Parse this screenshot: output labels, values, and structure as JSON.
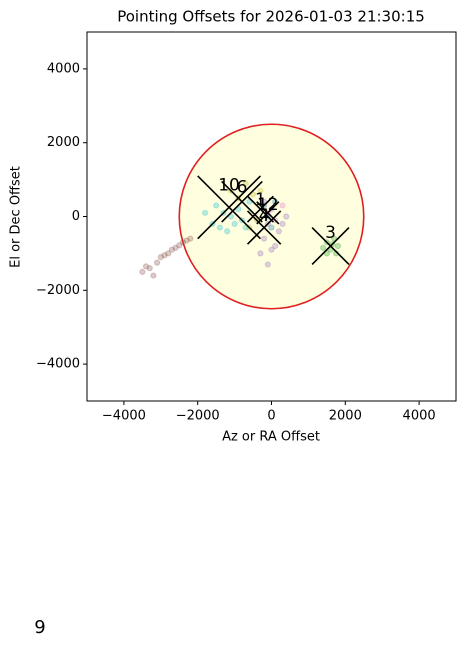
{
  "chart_data": {
    "type": "scatter",
    "title": "Pointing Offsets for 2026-01-03 21:30:15",
    "xlabel": "Az or RA Offset",
    "ylabel": "El or Dec Offset",
    "xlim": [
      -5000,
      5000
    ],
    "ylim": [
      -5000,
      5000
    ],
    "xticks": [
      {
        "value": -4000,
        "label": "−4000"
      },
      {
        "value": -2000,
        "label": "−2000"
      },
      0,
      2000,
      4000
    ],
    "yticks": [
      {
        "value": -4000,
        "label": "−4000"
      },
      {
        "value": -2000,
        "label": "−2000"
      },
      0,
      2000,
      4000
    ],
    "circle": {
      "radius": 2500,
      "color": "#e02020",
      "fill": "#ffffe0"
    },
    "series": [
      {
        "color": "#8c564b",
        "x": [
          -3500,
          -3300,
          -3100,
          -3000,
          -2900,
          -2800,
          -2700,
          -2600,
          -2500,
          -2400,
          -2300,
          -3200,
          -3400,
          -2200
        ],
        "y": [
          -1500,
          -1400,
          -1250,
          -1100,
          -1050,
          -1000,
          -900,
          -850,
          -780,
          -700,
          -650,
          -1600,
          -1350,
          -600
        ]
      },
      {
        "color": "#17becf",
        "x": [
          -1800,
          -1600,
          -1400,
          -1200,
          -1000,
          -1500,
          -900,
          -1100,
          -700,
          -1300,
          -600,
          -800
        ],
        "y": [
          100,
          -200,
          -300,
          -400,
          -200,
          300,
          200,
          0,
          -300,
          100,
          400,
          -100
        ]
      },
      {
        "color": "#bcbd22",
        "x": [
          -700,
          -500,
          -900,
          -300,
          -1100,
          -400,
          -600
        ],
        "y": [
          900,
          600,
          500,
          700,
          700,
          -100,
          -300
        ]
      },
      {
        "color": "#9467bd",
        "x": [
          -200,
          0,
          -100,
          100,
          200,
          -300,
          300,
          0,
          -200,
          400,
          -100
        ],
        "y": [
          -600,
          -900,
          -1300,
          -800,
          -400,
          -1000,
          -200,
          200,
          400,
          0,
          -200
        ]
      },
      {
        "color": "#2ca02c",
        "x": [
          1500,
          1600,
          1700,
          1500,
          1800,
          1650,
          1400,
          1750
        ],
        "y": [
          -700,
          -900,
          -600,
          -1000,
          -800,
          -750,
          -850,
          -1000
        ]
      },
      {
        "color": "#e377c2",
        "x": [
          -100,
          100,
          300
        ],
        "y": [
          100,
          -100,
          300
        ]
      },
      {
        "color": "#1f77b4",
        "x": [
          -200,
          -100,
          0,
          100
        ],
        "y": [
          300,
          0,
          -300,
          400
        ]
      }
    ],
    "markers": {
      "labels": [
        "10",
        "6",
        "1",
        "12",
        "3",
        "4"
      ],
      "x": [
        -1150,
        -800,
        -300,
        -100,
        1600,
        -200
      ],
      "y": [
        250,
        400,
        200,
        100,
        -800,
        -300
      ],
      "sizes": [
        850,
        550,
        350,
        300,
        500,
        450
      ],
      "color": "#000000"
    },
    "footer_text": "9"
  }
}
